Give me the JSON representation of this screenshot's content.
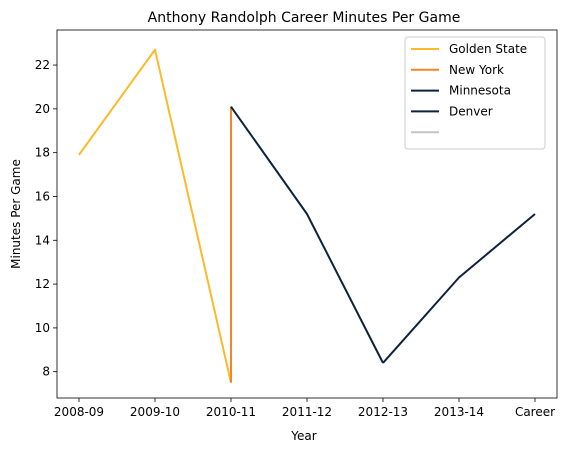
{
  "chart_data": {
    "type": "line",
    "title": "Anthony Randolph Career Minutes Per Game",
    "xlabel": "Year",
    "ylabel": "Minutes Per Game",
    "categories": [
      "2008-09",
      "2009-10",
      "2010-11",
      "2011-12",
      "2012-13",
      "2013-14",
      "Career"
    ],
    "ylim": [
      6.8,
      23.6
    ],
    "yticks": [
      8,
      10,
      12,
      14,
      16,
      18,
      20,
      22
    ],
    "grid": false,
    "legend_placement": "top-right",
    "series": [
      {
        "name": "Golden State",
        "color": "#FDB927",
        "points": [
          [
            0,
            17.9
          ],
          [
            1,
            22.7
          ],
          [
            2,
            7.5
          ]
        ]
      },
      {
        "name": "New York",
        "color": "#F58426",
        "points": [
          [
            2,
            7.5
          ],
          [
            2,
            20.1
          ]
        ]
      },
      {
        "name": "Minnesota",
        "color": "#0C2340",
        "points": [
          [
            2,
            20.1
          ],
          [
            3,
            15.2
          ],
          [
            4,
            8.4
          ]
        ]
      },
      {
        "name": "Denver",
        "color": "#0E2240",
        "points": [
          [
            4,
            8.4
          ],
          [
            5,
            12.3
          ],
          [
            6,
            15.2
          ]
        ]
      },
      {
        "name": "",
        "color": "#C4C4C4",
        "points": []
      }
    ]
  }
}
